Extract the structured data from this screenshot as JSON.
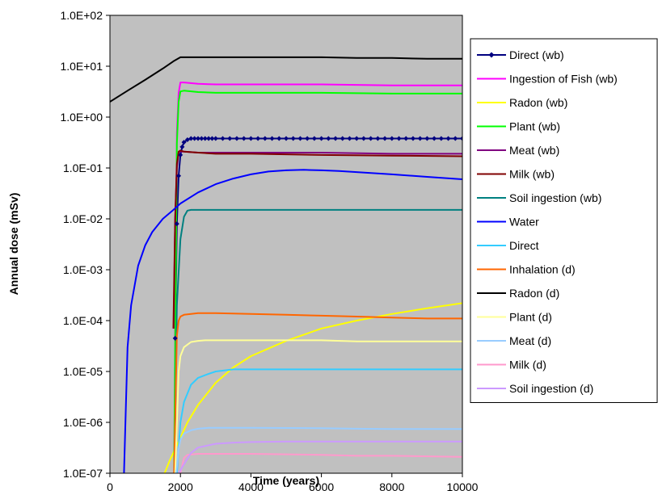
{
  "chart_data": {
    "type": "line",
    "xlabel": "Time (years)",
    "ylabel": "Annual dose (mSv)",
    "xlim": [
      0,
      10000
    ],
    "ylim": [
      1e-07,
      100
    ],
    "yscale": "log",
    "x_ticks": [
      "0",
      "2000",
      "4000",
      "6000",
      "8000",
      "10000"
    ],
    "y_ticks": [
      "1.0E-07",
      "1.0E-06",
      "1.0E-05",
      "1.0E-04",
      "1.0E-03",
      "1.0E-02",
      "1.0E-01",
      "1.0E+00",
      "1.0E+01",
      "1.0E+02"
    ],
    "plot_background": "#c0c0c0",
    "grid": false,
    "legend_position": "right",
    "series": [
      {
        "name": "Direct (wb)",
        "color": "#000080",
        "marker": "diamond",
        "x": [
          1850,
          1900,
          1950,
          2000,
          2050,
          2100,
          2200,
          2300,
          2400,
          2500,
          2600,
          2700,
          2800,
          2900,
          3000,
          3200,
          3400,
          3600,
          3800,
          4000,
          4200,
          4400,
          4600,
          4800,
          5000,
          5200,
          5400,
          5600,
          5800,
          6000,
          6200,
          6400,
          6600,
          6800,
          7000,
          7200,
          7400,
          7600,
          7800,
          8000,
          8200,
          8400,
          8600,
          8800,
          9000,
          9200,
          9400,
          9600,
          9800,
          10000
        ],
        "y": [
          4.5e-05,
          0.008,
          0.07,
          0.18,
          0.26,
          0.32,
          0.36,
          0.38,
          0.38,
          0.38,
          0.38,
          0.38,
          0.38,
          0.38,
          0.38,
          0.38,
          0.38,
          0.38,
          0.38,
          0.38,
          0.38,
          0.38,
          0.38,
          0.38,
          0.38,
          0.38,
          0.38,
          0.38,
          0.38,
          0.38,
          0.38,
          0.38,
          0.38,
          0.38,
          0.38,
          0.38,
          0.38,
          0.38,
          0.38,
          0.38,
          0.38,
          0.38,
          0.38,
          0.38,
          0.38,
          0.38,
          0.38,
          0.38,
          0.38,
          0.38
        ]
      },
      {
        "name": "Ingestion of Fish (wb)",
        "color": "#ff00ff",
        "x": [
          1820,
          1900,
          1950,
          2000,
          2100,
          2500,
          3000,
          4000,
          6000,
          8000,
          10000
        ],
        "y": [
          1e-07,
          0.5,
          3,
          4.8,
          4.8,
          4.5,
          4.4,
          4.4,
          4.4,
          4.2,
          4.2
        ]
      },
      {
        "name": "Radon (wb)",
        "color": "#ffff00",
        "x": [
          1550,
          1700,
          1850,
          2000,
          2200,
          2500,
          3000,
          3500,
          4000,
          5000,
          6000,
          7000,
          8000,
          9000,
          10000
        ],
        "y": [
          1e-07,
          1.8e-07,
          3e-07,
          5e-07,
          1e-06,
          2.2e-06,
          6e-06,
          1.2e-05,
          2e-05,
          4e-05,
          7e-05,
          0.0001,
          0.000135,
          0.000175,
          0.00022
        ]
      },
      {
        "name": "Plant (wb)",
        "color": "#00ff00",
        "x": [
          1820,
          1900,
          1950,
          2000,
          2100,
          2500,
          3000,
          4000,
          6000,
          8000,
          10000
        ],
        "y": [
          1e-07,
          0.3,
          2,
          3.2,
          3.3,
          3.1,
          3,
          3,
          3,
          2.9,
          2.9
        ]
      },
      {
        "name": "Meat (wb)",
        "color": "#800080",
        "x": [
          1810,
          1850,
          1900,
          1950,
          2000,
          2100,
          2500,
          3000,
          4000,
          6000,
          8000,
          10000
        ],
        "y": [
          7e-05,
          0.01,
          0.1,
          0.2,
          0.21,
          0.21,
          0.2,
          0.2,
          0.2,
          0.2,
          0.19,
          0.19
        ]
      },
      {
        "name": "Milk (wb)",
        "color": "#800000",
        "x": [
          1800,
          1850,
          1900,
          1950,
          2000,
          2100,
          2500,
          3000,
          4000,
          6000,
          8000,
          10000
        ],
        "y": [
          7e-05,
          0.01,
          0.12,
          0.21,
          0.22,
          0.21,
          0.2,
          0.19,
          0.19,
          0.18,
          0.175,
          0.17
        ]
      },
      {
        "name": "Soil ingestion (wb)",
        "color": "#008080",
        "x": [
          1830,
          1900,
          2000,
          2100,
          2200,
          2300,
          3000,
          4000,
          6000,
          8000,
          10000
        ],
        "y": [
          1e-07,
          0.0002,
          0.004,
          0.011,
          0.0145,
          0.015,
          0.015,
          0.015,
          0.015,
          0.015,
          0.015
        ]
      },
      {
        "name": "Water",
        "color": "#0000ff",
        "x": [
          400,
          500,
          600,
          800,
          1000,
          1200,
          1500,
          1800,
          2000,
          2500,
          3000,
          3500,
          4000,
          4500,
          5000,
          5500,
          6000,
          6500,
          7000,
          8000,
          9000,
          10000
        ],
        "y": [
          1e-07,
          3e-05,
          0.0002,
          0.0012,
          0.003,
          0.0055,
          0.01,
          0.015,
          0.02,
          0.033,
          0.048,
          0.062,
          0.075,
          0.085,
          0.09,
          0.092,
          0.09,
          0.087,
          0.083,
          0.075,
          0.067,
          0.06
        ]
      },
      {
        "name": "Direct",
        "color": "#33ccff",
        "x": [
          1900,
          2000,
          2100,
          2300,
          2500,
          2800,
          3000,
          3500,
          4000,
          6000,
          8000,
          10000
        ],
        "y": [
          1e-07,
          1e-06,
          2.5e-06,
          5.5e-06,
          7.5e-06,
          9e-06,
          1e-05,
          1.1e-05,
          1.1e-05,
          1.1e-05,
          1.1e-05,
          1.1e-05
        ]
      },
      {
        "name": "Inhalation (d)",
        "color": "#ff6600",
        "x": [
          1820,
          1900,
          1950,
          2000,
          2100,
          2300,
          2500,
          3000,
          4000,
          5000,
          6000,
          7000,
          8000,
          9000,
          10000
        ],
        "y": [
          1e-07,
          5e-05,
          0.0001,
          0.00012,
          0.00013,
          0.000135,
          0.00014,
          0.00014,
          0.000135,
          0.00013,
          0.000125,
          0.00012,
          0.000115,
          0.00011,
          0.00011
        ]
      },
      {
        "name": "Radon (d)",
        "color": "#000000",
        "x": [
          0,
          500,
          1000,
          1500,
          1800,
          2000,
          2200,
          3000,
          4000,
          5000,
          6000,
          7000,
          8000,
          9000,
          10000
        ],
        "y": [
          2,
          3.3,
          5.4,
          9,
          12.5,
          15,
          15,
          15,
          15,
          15,
          15,
          14.5,
          14.5,
          14,
          14
        ]
      },
      {
        "name": "Plant (d)",
        "color": "#ffff99",
        "x": [
          1850,
          1950,
          2000,
          2100,
          2300,
          2500,
          2700,
          3000,
          4000,
          6000,
          7000,
          8000,
          10000
        ],
        "y": [
          1e-07,
          1e-05,
          2e-05,
          3e-05,
          3.8e-05,
          4e-05,
          4.1e-05,
          4.1e-05,
          4.1e-05,
          4.1e-05,
          3.9e-05,
          3.9e-05,
          3.9e-05
        ]
      },
      {
        "name": "Meat (d)",
        "color": "#99ccff",
        "x": [
          1880,
          1950,
          2000,
          2100,
          2300,
          2500,
          2800,
          3000,
          4000,
          6000,
          7000,
          8000,
          10000
        ],
        "y": [
          1e-07,
          3e-07,
          4.5e-07,
          6e-07,
          7e-07,
          7.5e-07,
          7.8e-07,
          7.8e-07,
          7.8e-07,
          7.7e-07,
          7.5e-07,
          7.4e-07,
          7.4e-07
        ]
      },
      {
        "name": "Milk (d)",
        "color": "#ff99cc",
        "x": [
          2000,
          2100,
          2200,
          2500,
          3000,
          4000,
          6000,
          7000,
          8000,
          10000
        ],
        "y": [
          1e-07,
          2e-07,
          2.3e-07,
          2.4e-07,
          2.4e-07,
          2.4e-07,
          2.3e-07,
          2.2e-07,
          2.2e-07,
          2.1e-07
        ]
      },
      {
        "name": "Soil ingestion (d)",
        "color": "#cc99ff",
        "x": [
          1950,
          2100,
          2300,
          2500,
          3000,
          3500,
          4000,
          5000,
          6000,
          8000,
          10000
        ],
        "y": [
          1e-07,
          1.5e-07,
          2.5e-07,
          3.2e-07,
          3.8e-07,
          4e-07,
          4.1e-07,
          4.2e-07,
          4.2e-07,
          4.2e-07,
          4.2e-07
        ]
      }
    ]
  }
}
